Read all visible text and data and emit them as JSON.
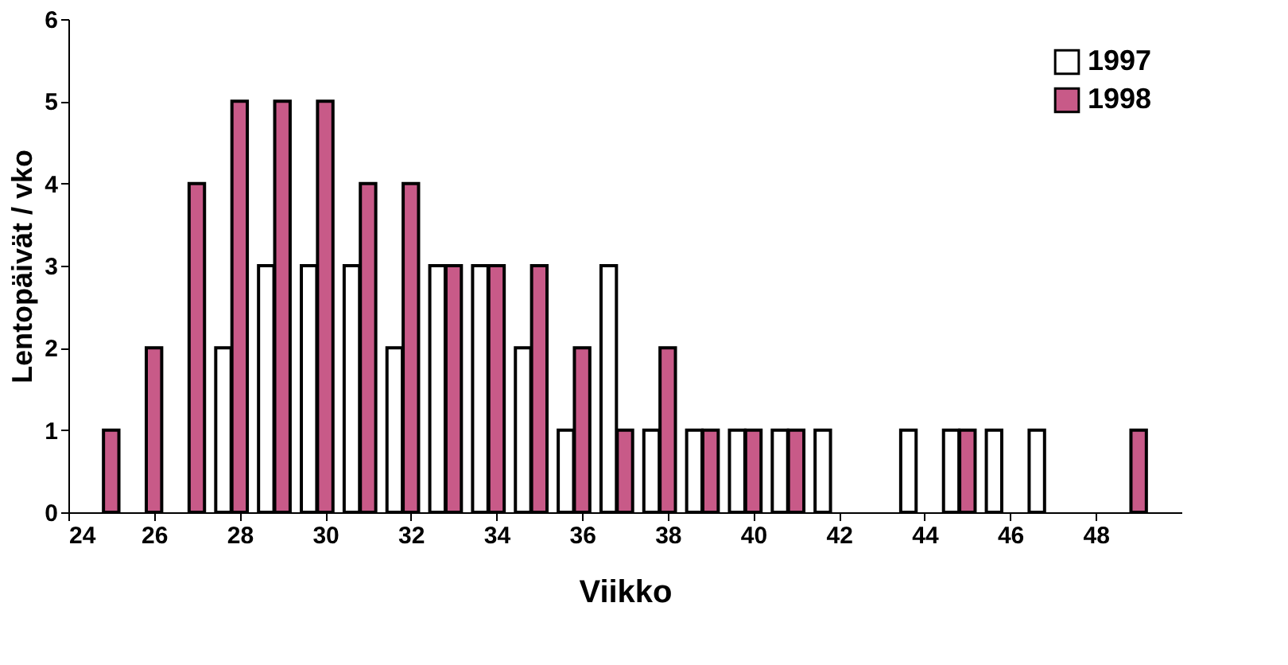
{
  "chart_data": {
    "type": "bar",
    "xlabel": "Viikko",
    "ylabel": "Lentopäivät / vko",
    "x": [
      25,
      26,
      27,
      28,
      29,
      30,
      31,
      32,
      33,
      34,
      35,
      36,
      37,
      38,
      39,
      40,
      41,
      42,
      43,
      44,
      45,
      46,
      47,
      48,
      49
    ],
    "series": [
      {
        "name": "1997",
        "color": "#ffffff",
        "values": [
          null,
          null,
          null,
          2,
          3,
          3,
          3,
          2,
          3,
          3,
          2,
          1,
          3,
          1,
          1,
          1,
          1,
          1,
          null,
          1,
          1,
          1,
          1,
          null,
          null
        ]
      },
      {
        "name": "1998",
        "color": "#c85a88",
        "values": [
          1,
          2,
          4,
          5,
          5,
          5,
          4,
          4,
          3,
          3,
          3,
          2,
          1,
          2,
          1,
          1,
          1,
          null,
          null,
          null,
          1,
          null,
          null,
          null,
          1
        ]
      }
    ],
    "xlim": [
      24,
      50
    ],
    "xticks": [
      24,
      26,
      28,
      30,
      32,
      34,
      36,
      38,
      40,
      42,
      44,
      46,
      48
    ],
    "ylim": [
      0,
      6
    ],
    "yticks": [
      0,
      1,
      2,
      3,
      4,
      5,
      6
    ],
    "grid": false,
    "legend": "top right"
  }
}
